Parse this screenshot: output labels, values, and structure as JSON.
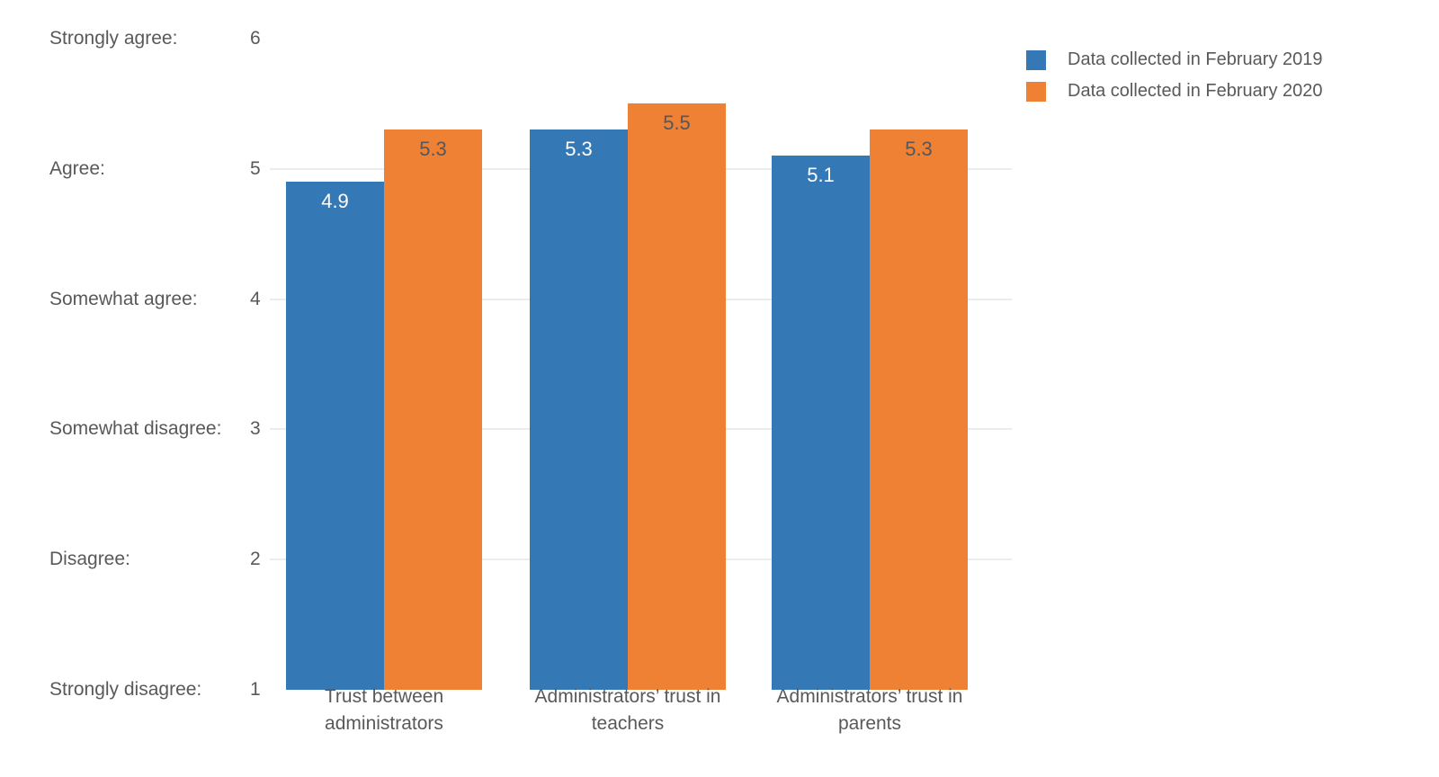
{
  "chart_data": {
    "type": "bar",
    "title": "",
    "xlabel": "",
    "ylabel": "",
    "grid": true,
    "legend_position": "top-right",
    "categories": [
      {
        "lines": [
          "Trust between",
          "administrators"
        ]
      },
      {
        "lines": [
          "Administrators’ trust in",
          "teachers"
        ]
      },
      {
        "lines": [
          "Administrators’ trust in",
          "parents"
        ]
      }
    ],
    "series": [
      {
        "name": "Data collected in February 2019",
        "color": "#3478b6",
        "value_label_color": "#ffffff",
        "values": [
          4.9,
          5.3,
          5.1
        ]
      },
      {
        "name": "Data collected in February 2020",
        "color": "#ee8134",
        "value_label_color": "#53575e",
        "values": [
          5.3,
          5.5,
          5.3
        ]
      }
    ],
    "y_axis": {
      "min": 1,
      "max": 6,
      "ticks": [
        {
          "value": 6,
          "label": "Strongly agree:",
          "number": "6"
        },
        {
          "value": 5,
          "label": "Agree:",
          "number": "5"
        },
        {
          "value": 4,
          "label": "Somewhat agree:",
          "number": "4"
        },
        {
          "value": 3,
          "label": "Somewhat disagree:",
          "number": "3"
        },
        {
          "value": 2,
          "label": "Disagree:",
          "number": "2"
        },
        {
          "value": 1,
          "label": "Strongly disagree:",
          "number": "1"
        }
      ],
      "gridline_values": [
        5,
        4,
        3,
        2
      ]
    },
    "colors": {
      "gridline": "#ececec",
      "axis_text": "#595959",
      "background": "#ffffff"
    }
  }
}
